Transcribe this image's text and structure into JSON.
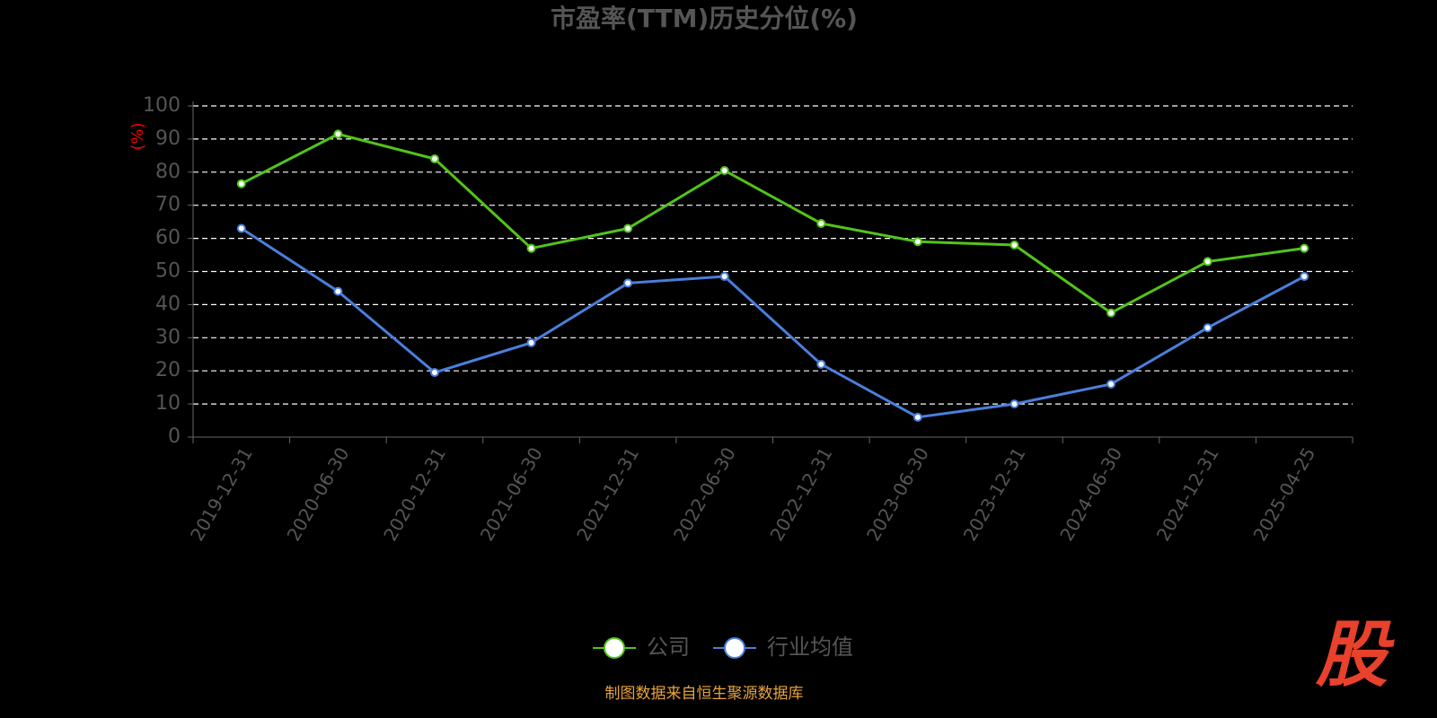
{
  "chart_data": {
    "type": "line",
    "title": "市盈率(TTM)历史分位(%)",
    "y_label": "(%)",
    "categories": [
      "2019-12-31",
      "2020-06-30",
      "2020-12-31",
      "2021-06-30",
      "2021-12-31",
      "2022-06-30",
      "2022-12-31",
      "2023-06-30",
      "2023-12-31",
      "2024-06-30",
      "2024-12-31",
      "2025-04-25"
    ],
    "series": [
      {
        "name": "公司",
        "color": "#52c41a",
        "values": [
          76.5,
          91.5,
          84,
          57,
          63,
          80.5,
          64.5,
          59,
          58,
          37.5,
          53,
          57
        ]
      },
      {
        "name": "行业均值",
        "color": "#4a7fdc",
        "values": [
          63,
          44,
          19.5,
          28.5,
          46.5,
          48.5,
          22,
          6,
          10,
          16,
          33,
          48.5
        ]
      }
    ],
    "ylim": [
      0,
      100
    ],
    "yticks": [
      0,
      10,
      20,
      30,
      40,
      50,
      60,
      70,
      80,
      90,
      100
    ],
    "grid": true,
    "legend": "bottom",
    "source": "制图数据来自恒生聚源数据库",
    "logo": "股"
  }
}
